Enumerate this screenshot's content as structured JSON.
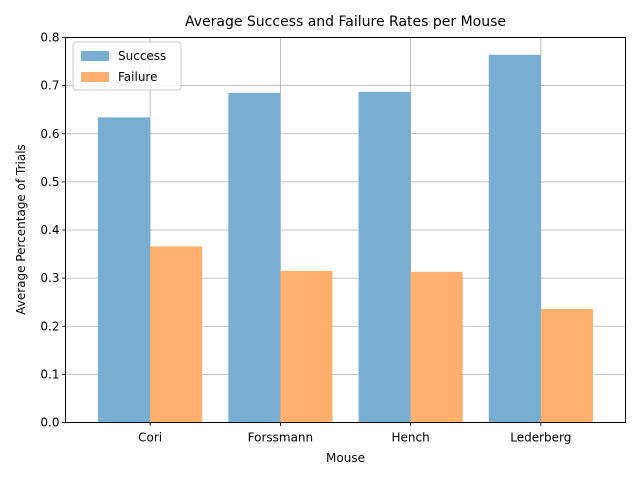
{
  "chart_data": {
    "type": "bar",
    "title": "Average Success and Failure Rates per Mouse",
    "xlabel": "Mouse",
    "ylabel": "Average Percentage of Trials",
    "categories": [
      "Cori",
      "Forssmann",
      "Hench",
      "Lederberg"
    ],
    "series": [
      {
        "name": "Success",
        "values": [
          0.634,
          0.685,
          0.687,
          0.764
        ],
        "color": "#77aed2"
      },
      {
        "name": "Failure",
        "values": [
          0.366,
          0.315,
          0.313,
          0.236
        ],
        "color": "#ffb06e"
      }
    ],
    "ylim": [
      0,
      0.8
    ],
    "yticks": [
      "0.0",
      "0.1",
      "0.2",
      "0.3",
      "0.4",
      "0.5",
      "0.6",
      "0.7",
      "0.8"
    ],
    "grid": true,
    "legend_position": "top-left"
  }
}
